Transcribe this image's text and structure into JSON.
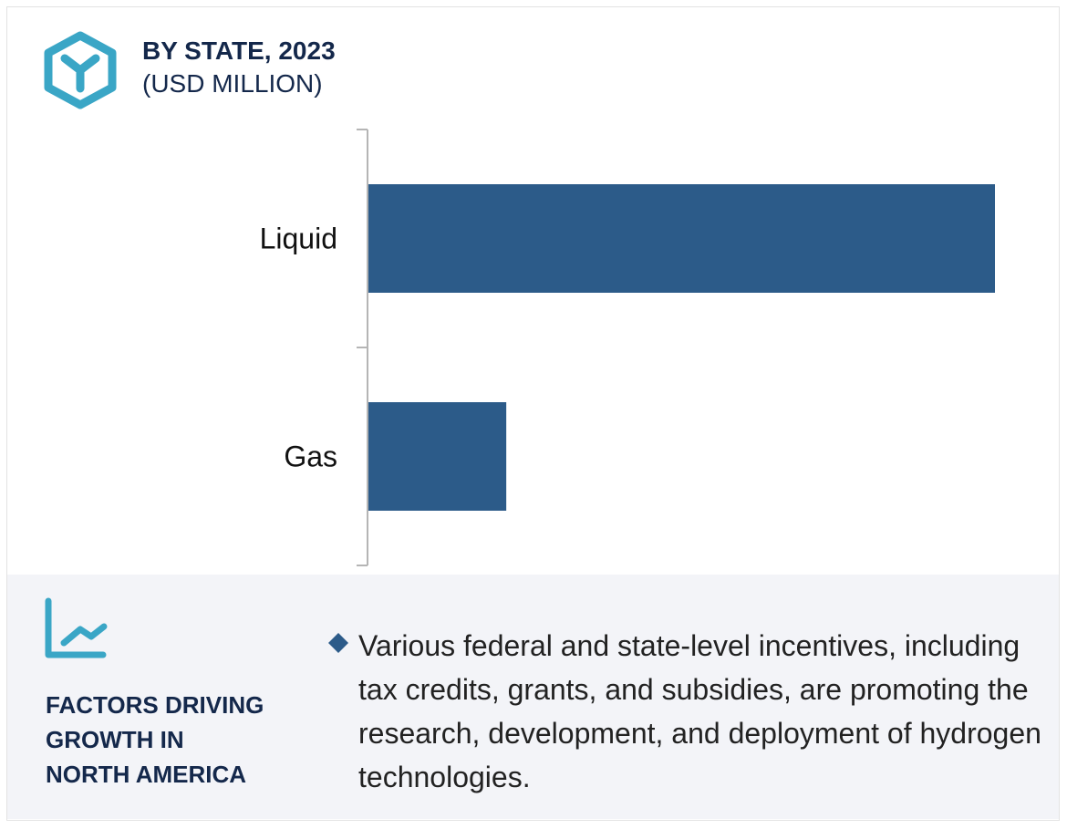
{
  "header": {
    "title": "BY STATE, 2023",
    "subtitle": "(USD MILLION)",
    "logo_icon": "hexagon-y-logo-icon"
  },
  "colors": {
    "bar": "#2c5b89",
    "accent": "#3aa6c6",
    "heading": "#14284b",
    "panel_bg": "#f3f4f8"
  },
  "chart_data": {
    "type": "bar",
    "orientation": "horizontal",
    "categories": [
      "Liquid",
      "Gas"
    ],
    "values": [
      100,
      22
    ],
    "title": "BY STATE, 2023",
    "subtitle": "(USD MILLION)",
    "xlabel": "",
    "ylabel": "",
    "xlim": [
      0,
      100
    ],
    "grid": false,
    "value_axis_shown": false
  },
  "footer": {
    "icon": "line-chart-icon",
    "heading_lines": [
      "FACTORS DRIVING",
      "GROWTH IN",
      "NORTH AMERICA"
    ],
    "bullet_icon": "diamond-icon",
    "bullet_text": "Various federal and state-level incentives, including tax credits, grants, and subsidies, are promoting the research, development, and deployment of hydrogen technologies."
  }
}
